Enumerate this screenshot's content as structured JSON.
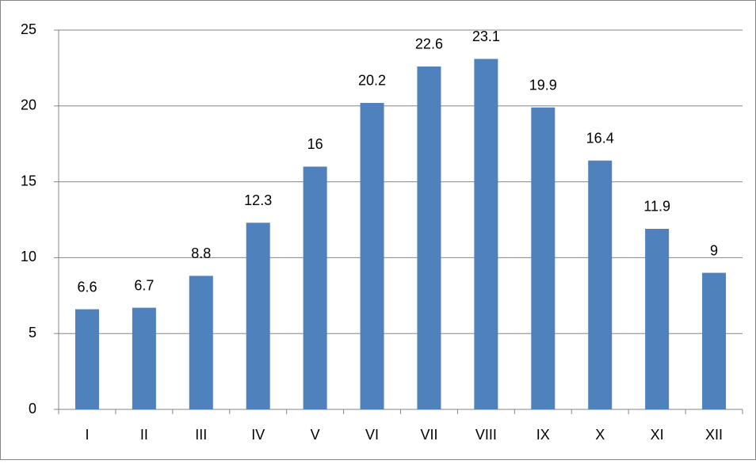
{
  "chart_data": {
    "type": "bar",
    "categories": [
      "I",
      "II",
      "III",
      "IV",
      "V",
      "VI",
      "VII",
      "VIII",
      "IX",
      "X",
      "XI",
      "XII"
    ],
    "values": [
      6.6,
      6.7,
      8.8,
      12.3,
      16,
      20.2,
      22.6,
      23.1,
      19.9,
      16.4,
      11.9,
      9
    ],
    "color": "#4f81bd",
    "ylim": [
      0,
      25
    ],
    "yticks": [
      0,
      5,
      10,
      15,
      20,
      25
    ],
    "grid": true,
    "data_labels": true
  }
}
